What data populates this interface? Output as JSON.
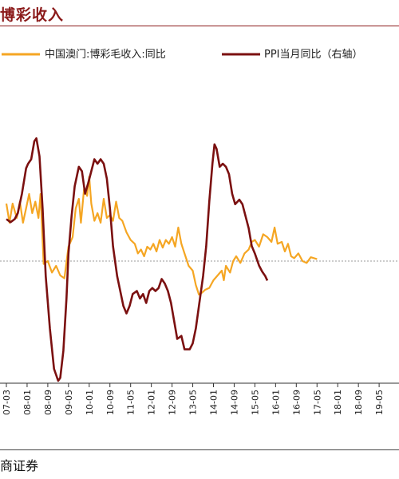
{
  "title": "博彩收入",
  "source": "商证券",
  "chart_data": {
    "type": "line",
    "title": "博彩收入",
    "legend": {
      "placement": "top"
    },
    "x_tick_labels": [
      "07-03",
      "08-01",
      "08-09",
      "09-05",
      "10-01",
      "10-09",
      "11-05",
      "12-01",
      "12-09",
      "13-05",
      "14-01",
      "14-09",
      "15-05",
      "16-01",
      "16-09",
      "17-05",
      "18-01",
      "18-09",
      "19-05"
    ],
    "series": [
      {
        "name": "中国澳门:博彩毛收入:同比",
        "color": "#F5A623",
        "axis": "left",
        "values": [
          [
            0.0,
            60
          ],
          [
            0.15,
            40
          ],
          [
            0.3,
            60
          ],
          [
            0.5,
            45
          ],
          [
            0.65,
            62
          ],
          [
            0.8,
            40
          ],
          [
            0.95,
            55
          ],
          [
            1.1,
            70
          ],
          [
            1.25,
            50
          ],
          [
            1.4,
            62
          ],
          [
            1.55,
            45
          ],
          [
            1.65,
            70
          ],
          [
            1.8,
            -3
          ],
          [
            2.0,
            0
          ],
          [
            2.2,
            -12
          ],
          [
            2.4,
            -5
          ],
          [
            2.6,
            -15
          ],
          [
            2.8,
            -18
          ],
          [
            3.0,
            15
          ],
          [
            3.2,
            25
          ],
          [
            3.35,
            55
          ],
          [
            3.5,
            65
          ],
          [
            3.6,
            40
          ],
          [
            3.75,
            75
          ],
          [
            3.9,
            68
          ],
          [
            4.0,
            88
          ],
          [
            4.1,
            60
          ],
          [
            4.25,
            42
          ],
          [
            4.4,
            50
          ],
          [
            4.55,
            40
          ],
          [
            4.7,
            65
          ],
          [
            4.85,
            45
          ],
          [
            5.0,
            48
          ],
          [
            5.15,
            42
          ],
          [
            5.3,
            62
          ],
          [
            5.45,
            45
          ],
          [
            5.6,
            42
          ],
          [
            5.8,
            30
          ],
          [
            6.0,
            22
          ],
          [
            6.2,
            18
          ],
          [
            6.35,
            8
          ],
          [
            6.5,
            12
          ],
          [
            6.65,
            5
          ],
          [
            6.8,
            15
          ],
          [
            6.95,
            12
          ],
          [
            7.1,
            18
          ],
          [
            7.25,
            10
          ],
          [
            7.4,
            22
          ],
          [
            7.55,
            14
          ],
          [
            7.7,
            22
          ],
          [
            7.85,
            18
          ],
          [
            8.0,
            25
          ],
          [
            8.15,
            15
          ],
          [
            8.3,
            35
          ],
          [
            8.45,
            18
          ],
          [
            8.6,
            8
          ],
          [
            8.8,
            -5
          ],
          [
            9.0,
            -10
          ],
          [
            9.15,
            -25
          ],
          [
            9.3,
            -35
          ],
          [
            9.45,
            -33
          ],
          [
            9.6,
            -30
          ],
          [
            9.8,
            -28
          ],
          [
            10.0,
            -20
          ],
          [
            10.2,
            -15
          ],
          [
            10.4,
            -10
          ],
          [
            10.5,
            -20
          ],
          [
            10.6,
            -5
          ],
          [
            10.8,
            -12
          ],
          [
            10.95,
            0
          ],
          [
            11.1,
            5
          ],
          [
            11.3,
            -2
          ],
          [
            11.5,
            8
          ],
          [
            11.7,
            12
          ],
          [
            11.85,
            20
          ],
          [
            12.0,
            22
          ],
          [
            12.2,
            15
          ],
          [
            12.4,
            28
          ],
          [
            12.6,
            25
          ],
          [
            12.8,
            20
          ],
          [
            12.95,
            35
          ],
          [
            13.1,
            18
          ],
          [
            13.3,
            20
          ],
          [
            13.45,
            10
          ],
          [
            13.6,
            18
          ],
          [
            13.75,
            5
          ],
          [
            13.9,
            3
          ],
          [
            14.1,
            8
          ],
          [
            14.3,
            0
          ],
          [
            14.5,
            -2
          ],
          [
            14.7,
            4
          ],
          [
            15.0,
            2
          ]
        ]
      },
      {
        "name": "PPI当月同比（右轴）",
        "color": "#7B1010",
        "axis": "right",
        "values": [
          [
            0.0,
            2.8
          ],
          [
            0.2,
            2.6
          ],
          [
            0.4,
            2.8
          ],
          [
            0.55,
            3.2
          ],
          [
            0.75,
            4.5
          ],
          [
            0.95,
            6.2
          ],
          [
            1.05,
            6.5
          ],
          [
            1.2,
            6.8
          ],
          [
            1.35,
            8.0
          ],
          [
            1.45,
            8.2
          ],
          [
            1.6,
            7.0
          ],
          [
            1.75,
            3.5
          ],
          [
            1.9,
            -1.0
          ],
          [
            2.1,
            -4.5
          ],
          [
            2.3,
            -7.2
          ],
          [
            2.5,
            -8.0
          ],
          [
            2.6,
            -7.8
          ],
          [
            2.75,
            -6.0
          ],
          [
            2.9,
            -2.5
          ],
          [
            3.0,
            0.5
          ],
          [
            3.15,
            3.0
          ],
          [
            3.3,
            5.0
          ],
          [
            3.5,
            6.3
          ],
          [
            3.65,
            6.0
          ],
          [
            3.8,
            4.5
          ],
          [
            3.95,
            5.2
          ],
          [
            4.1,
            6.0
          ],
          [
            4.25,
            6.8
          ],
          [
            4.4,
            6.5
          ],
          [
            4.55,
            6.8
          ],
          [
            4.7,
            6.5
          ],
          [
            4.85,
            5.5
          ],
          [
            5.0,
            3.5
          ],
          [
            5.15,
            1.0
          ],
          [
            5.35,
            -1.0
          ],
          [
            5.5,
            -2.0
          ],
          [
            5.65,
            -3.0
          ],
          [
            5.8,
            -3.5
          ],
          [
            5.95,
            -3.0
          ],
          [
            6.1,
            -2.2
          ],
          [
            6.3,
            -2.0
          ],
          [
            6.45,
            -2.5
          ],
          [
            6.6,
            -2.2
          ],
          [
            6.75,
            -2.8
          ],
          [
            6.9,
            -2.0
          ],
          [
            7.05,
            -1.8
          ],
          [
            7.2,
            -2.0
          ],
          [
            7.35,
            -1.8
          ],
          [
            7.5,
            -1.2
          ],
          [
            7.65,
            -1.5
          ],
          [
            7.8,
            -2.0
          ],
          [
            7.95,
            -2.8
          ],
          [
            8.1,
            -4.0
          ],
          [
            8.25,
            -5.2
          ],
          [
            8.45,
            -5.0
          ],
          [
            8.6,
            -5.9
          ],
          [
            8.85,
            -5.9
          ],
          [
            9.0,
            -5.5
          ],
          [
            9.15,
            -4.5
          ],
          [
            9.3,
            -3.0
          ],
          [
            9.5,
            -1.0
          ],
          [
            9.65,
            1.0
          ],
          [
            9.8,
            4.0
          ],
          [
            9.95,
            6.5
          ],
          [
            10.05,
            7.8
          ],
          [
            10.15,
            7.5
          ],
          [
            10.3,
            6.3
          ],
          [
            10.45,
            6.5
          ],
          [
            10.6,
            6.3
          ],
          [
            10.75,
            5.8
          ],
          [
            10.9,
            4.5
          ],
          [
            11.05,
            3.8
          ],
          [
            11.25,
            4.1
          ],
          [
            11.4,
            3.8
          ],
          [
            11.55,
            3.0
          ],
          [
            11.7,
            2.2
          ],
          [
            11.85,
            1.0
          ],
          [
            12.0,
            0.5
          ],
          [
            12.2,
            -0.3
          ],
          [
            12.35,
            -0.7
          ],
          [
            12.5,
            -1.0
          ],
          [
            12.6,
            -1.3
          ]
        ]
      }
    ]
  }
}
